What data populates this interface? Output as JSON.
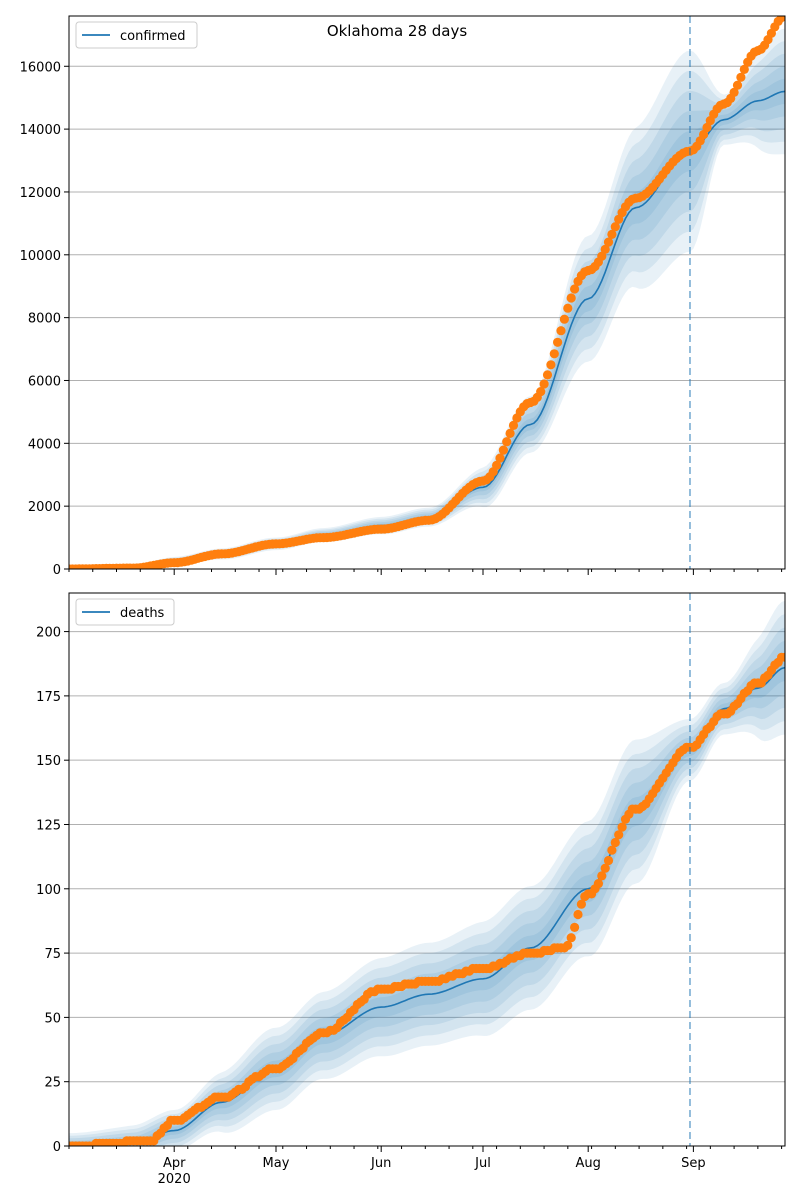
{
  "title": "Oklahoma 28 days",
  "colors": {
    "model": "#1f77b4",
    "observed": "#ff7f0e",
    "band": "#1f77b4",
    "grid": "#b0b0b0",
    "forecast_line": "#1f77b4"
  },
  "x_axis": {
    "type": "date",
    "start": "2020-03-01",
    "end": "2020-09-28",
    "tick_labels": [
      {
        "date": "2020-04-01",
        "label": "Apr",
        "sub": "2020"
      },
      {
        "date": "2020-05-01",
        "label": "May",
        "sub": ""
      },
      {
        "date": "2020-06-01",
        "label": "Jun",
        "sub": ""
      },
      {
        "date": "2020-07-01",
        "label": "Jul",
        "sub": ""
      },
      {
        "date": "2020-08-01",
        "label": "Aug",
        "sub": ""
      },
      {
        "date": "2020-09-01",
        "label": "Sep",
        "sub": ""
      }
    ],
    "forecast_start": "2020-08-31"
  },
  "chart_data": [
    {
      "type": "line",
      "legend": "confirmed",
      "legend_position": "top-left",
      "grid": "horizontal",
      "ylim": [
        0,
        17600
      ],
      "yticks": [
        0,
        2000,
        4000,
        6000,
        8000,
        10000,
        12000,
        14000,
        16000
      ],
      "model_curve": [
        {
          "date": "2020-03-01",
          "y": 0
        },
        {
          "date": "2020-03-20",
          "y": 40
        },
        {
          "date": "2020-04-01",
          "y": 250
        },
        {
          "date": "2020-04-15",
          "y": 480
        },
        {
          "date": "2020-05-01",
          "y": 800
        },
        {
          "date": "2020-05-15",
          "y": 1080
        },
        {
          "date": "2020-06-01",
          "y": 1380
        },
        {
          "date": "2020-06-15",
          "y": 1650
        },
        {
          "date": "2020-07-01",
          "y": 2600
        },
        {
          "date": "2020-07-15",
          "y": 4600
        },
        {
          "date": "2020-08-01",
          "y": 8600
        },
        {
          "date": "2020-08-15",
          "y": 11500
        },
        {
          "date": "2020-08-31",
          "y": 13300
        },
        {
          "date": "2020-09-10",
          "y": 14300
        },
        {
          "date": "2020-09-20",
          "y": 14900
        },
        {
          "date": "2020-09-28",
          "y": 15200
        }
      ],
      "band_widths": [
        {
          "date": "2020-03-01",
          "w": 60
        },
        {
          "date": "2020-05-01",
          "w": 200
        },
        {
          "date": "2020-06-15",
          "w": 300
        },
        {
          "date": "2020-07-15",
          "w": 900
        },
        {
          "date": "2020-08-01",
          "w": 2000
        },
        {
          "date": "2020-08-31",
          "w": 3200
        },
        {
          "date": "2020-09-10",
          "w": 800
        },
        {
          "date": "2020-09-28",
          "w": 2000
        }
      ],
      "observed": [
        {
          "date": "2020-03-01",
          "y": 0
        },
        {
          "date": "2020-03-20",
          "y": 30
        },
        {
          "date": "2020-04-01",
          "y": 200
        },
        {
          "date": "2020-04-15",
          "y": 480
        },
        {
          "date": "2020-05-01",
          "y": 800
        },
        {
          "date": "2020-05-15",
          "y": 1000
        },
        {
          "date": "2020-06-01",
          "y": 1270
        },
        {
          "date": "2020-06-15",
          "y": 1550
        },
        {
          "date": "2020-07-01",
          "y": 2800
        },
        {
          "date": "2020-07-15",
          "y": 5300
        },
        {
          "date": "2020-08-01",
          "y": 9500
        },
        {
          "date": "2020-08-15",
          "y": 11800
        },
        {
          "date": "2020-08-31",
          "y": 13300
        },
        {
          "date": "2020-09-10",
          "y": 14800
        },
        {
          "date": "2020-09-20",
          "y": 16500
        },
        {
          "date": "2020-09-28",
          "y": 17600
        }
      ]
    },
    {
      "type": "line",
      "legend": "deaths",
      "legend_position": "top-left",
      "grid": "horizontal",
      "ylim": [
        0,
        215
      ],
      "yticks": [
        0,
        25,
        50,
        75,
        100,
        125,
        150,
        175,
        200
      ],
      "model_curve": [
        {
          "date": "2020-03-01",
          "y": 0
        },
        {
          "date": "2020-03-20",
          "y": 1
        },
        {
          "date": "2020-04-01",
          "y": 6
        },
        {
          "date": "2020-04-15",
          "y": 17
        },
        {
          "date": "2020-05-01",
          "y": 30
        },
        {
          "date": "2020-05-15",
          "y": 43
        },
        {
          "date": "2020-06-01",
          "y": 54
        },
        {
          "date": "2020-06-15",
          "y": 59
        },
        {
          "date": "2020-07-01",
          "y": 65
        },
        {
          "date": "2020-07-15",
          "y": 77
        },
        {
          "date": "2020-08-01",
          "y": 100
        },
        {
          "date": "2020-08-15",
          "y": 130
        },
        {
          "date": "2020-08-31",
          "y": 154
        },
        {
          "date": "2020-09-10",
          "y": 170
        },
        {
          "date": "2020-09-20",
          "y": 178
        },
        {
          "date": "2020-09-28",
          "y": 186
        }
      ],
      "band_widths": [
        {
          "date": "2020-03-01",
          "w": 5
        },
        {
          "date": "2020-04-01",
          "w": 8
        },
        {
          "date": "2020-05-01",
          "w": 16
        },
        {
          "date": "2020-06-15",
          "w": 20
        },
        {
          "date": "2020-07-15",
          "w": 24
        },
        {
          "date": "2020-08-15",
          "w": 28
        },
        {
          "date": "2020-08-31",
          "w": 12
        },
        {
          "date": "2020-09-10",
          "w": 10
        },
        {
          "date": "2020-09-28",
          "w": 26
        }
      ],
      "observed": [
        {
          "date": "2020-03-01",
          "y": 0
        },
        {
          "date": "2020-03-25",
          "y": 2
        },
        {
          "date": "2020-04-01",
          "y": 10
        },
        {
          "date": "2020-04-15",
          "y": 19
        },
        {
          "date": "2020-05-01",
          "y": 30
        },
        {
          "date": "2020-05-15",
          "y": 44
        },
        {
          "date": "2020-06-01",
          "y": 61
        },
        {
          "date": "2020-06-15",
          "y": 64
        },
        {
          "date": "2020-07-01",
          "y": 69
        },
        {
          "date": "2020-07-15",
          "y": 75
        },
        {
          "date": "2020-07-25",
          "y": 77
        },
        {
          "date": "2020-08-01",
          "y": 98
        },
        {
          "date": "2020-08-15",
          "y": 131
        },
        {
          "date": "2020-08-31",
          "y": 155
        },
        {
          "date": "2020-09-10",
          "y": 168
        },
        {
          "date": "2020-09-20",
          "y": 180
        },
        {
          "date": "2020-09-28",
          "y": 190
        }
      ]
    }
  ]
}
